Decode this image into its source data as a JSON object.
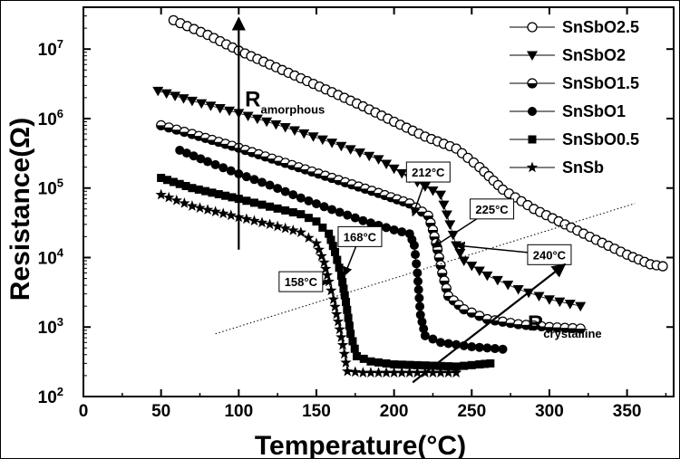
{
  "chart_data": {
    "type": "scatter",
    "xlabel": "Temperature(°C)",
    "ylabel": "Resistance(Ω)",
    "xlim": [
      0,
      380
    ],
    "ylim": [
      100,
      40000000
    ],
    "y_scale": "log",
    "x_ticks": [
      0,
      50,
      100,
      150,
      200,
      250,
      300,
      350
    ],
    "y_ticks": [
      {
        "value": 100,
        "base": "10",
        "exp": "2"
      },
      {
        "value": 1000,
        "base": "10",
        "exp": "3"
      },
      {
        "value": 10000,
        "base": "10",
        "exp": "4"
      },
      {
        "value": 100000,
        "base": "10",
        "exp": "5"
      },
      {
        "value": 1000000,
        "base": "10",
        "exp": "6"
      },
      {
        "value": 10000000,
        "base": "10",
        "exp": "7"
      }
    ],
    "legend_position": "top-right",
    "series": [
      {
        "name": "SnSbO2.5",
        "marker": "open-circle",
        "color": "#000000",
        "points": [
          [
            58,
            26000000.0
          ],
          [
            80,
            16000000.0
          ],
          [
            100,
            9500000.0
          ],
          [
            120,
            6000000.0
          ],
          [
            140,
            3800000.0
          ],
          [
            160,
            2400000.0
          ],
          [
            180,
            1500000.0
          ],
          [
            200,
            900000.0
          ],
          [
            220,
            550000.0
          ],
          [
            240,
            370000.0
          ],
          [
            255,
            200000.0
          ],
          [
            270,
            95000.0
          ],
          [
            290,
            50000.0
          ],
          [
            310,
            30000.0
          ],
          [
            330,
            18000.0
          ],
          [
            350,
            11000.0
          ],
          [
            365,
            8000.0
          ],
          [
            373,
            7500.0
          ]
        ]
      },
      {
        "name": "SnSbO2",
        "marker": "down-triangle",
        "color": "#000000",
        "points": [
          [
            48,
            2500000.0
          ],
          [
            70,
            1800000.0
          ],
          [
            100,
            1200000.0
          ],
          [
            130,
            750000.0
          ],
          [
            160,
            450000.0
          ],
          [
            190,
            260000.0
          ],
          [
            210,
            140000.0
          ],
          [
            230,
            80000.0
          ],
          [
            236,
            30000.0
          ],
          [
            240,
            15000.0
          ],
          [
            245,
            9000.0
          ],
          [
            260,
            5500.0
          ],
          [
            280,
            3500.0
          ],
          [
            300,
            2500.0
          ],
          [
            320,
            2000.0
          ]
        ]
      },
      {
        "name": "SnSbO1.5",
        "marker": "half-circle",
        "color": "#000000",
        "points": [
          [
            50,
            800000.0
          ],
          [
            70,
            600000.0
          ],
          [
            100,
            380000.0
          ],
          [
            130,
            230000.0
          ],
          [
            160,
            140000.0
          ],
          [
            190,
            85000.0
          ],
          [
            210,
            60000.0
          ],
          [
            222,
            40000.0
          ],
          [
            225,
            25000.0
          ],
          [
            228,
            13000.0
          ],
          [
            231,
            6000.0
          ],
          [
            235,
            2800.0
          ],
          [
            245,
            1800.0
          ],
          [
            260,
            1300.0
          ],
          [
            280,
            1100.0
          ],
          [
            300,
            1000.0
          ],
          [
            320,
            950.0
          ]
        ]
      },
      {
        "name": "SnSbO1",
        "marker": "filled-circle",
        "color": "#000000",
        "points": [
          [
            62,
            350000.0
          ],
          [
            80,
            240000.0
          ],
          [
            100,
            160000.0
          ],
          [
            120,
            110000.0
          ],
          [
            140,
            72000.0
          ],
          [
            160,
            49000.0
          ],
          [
            180,
            34000.0
          ],
          [
            200,
            25000.0
          ],
          [
            210,
            22000.0
          ],
          [
            213,
            15000.0
          ],
          [
            215,
            6000.0
          ],
          [
            217,
            1500.0
          ],
          [
            220,
            750.0
          ],
          [
            230,
            600.0
          ],
          [
            250,
            520.0
          ],
          [
            270,
            480.0
          ]
        ]
      },
      {
        "name": "SnSbO0.5",
        "marker": "filled-square",
        "color": "#000000",
        "points": [
          [
            50,
            140000.0
          ],
          [
            70,
            100000.0
          ],
          [
            100,
            70000.0
          ],
          [
            120,
            54000.0
          ],
          [
            140,
            42000.0
          ],
          [
            150,
            33000.0
          ],
          [
            158,
            22000.0
          ],
          [
            162,
            12000.0
          ],
          [
            166,
            5500.0
          ],
          [
            169,
            2300.0
          ],
          [
            172,
            800.0
          ],
          [
            176,
            380.0
          ],
          [
            185,
            320.0
          ],
          [
            200,
            290.0
          ],
          [
            220,
            280.0
          ],
          [
            240,
            270.0
          ],
          [
            255,
            290.0
          ],
          [
            262,
            300.0
          ]
        ]
      },
      {
        "name": "SnSb",
        "marker": "star",
        "color": "#000000",
        "points": [
          [
            50,
            80000.0
          ],
          [
            70,
            55000.0
          ],
          [
            100,
            38000.0
          ],
          [
            120,
            30000.0
          ],
          [
            140,
            23000.0
          ],
          [
            150,
            16000.0
          ],
          [
            155,
            8500.0
          ],
          [
            158,
            4500.0
          ],
          [
            161,
            2500.0
          ],
          [
            164,
            1200.0
          ],
          [
            167,
            550.0
          ],
          [
            170,
            230.0
          ],
          [
            180,
            220.0
          ],
          [
            200,
            220.0
          ],
          [
            220,
            220.0
          ],
          [
            240,
            220.0
          ]
        ]
      }
    ],
    "annotations": [
      {
        "id": "ann-158",
        "text": "158°C",
        "bx": 140,
        "by": 4500.0,
        "tx": 157,
        "ty": 4300.0
      },
      {
        "id": "ann-168",
        "text": "168°C",
        "bx": 178,
        "by": 20000.0,
        "tx": 168,
        "ty": 5500.0
      },
      {
        "id": "ann-212",
        "text": "212°C",
        "bx": 222,
        "by": 170000.0,
        "tx": 212,
        "ty": 40000.0
      },
      {
        "id": "ann-225",
        "text": "225°C",
        "bx": 263,
        "by": 50000.0,
        "tx": 225,
        "ty": 14000.0
      },
      {
        "id": "ann-240",
        "text": "240°C",
        "bx": 300,
        "by": 11000.0,
        "tx": 240,
        "ty": 15000.0
      }
    ],
    "r_amorphous": {
      "main": "R",
      "sub": "amorphous",
      "arrow_from": [
        100,
        13000.0
      ],
      "arrow_to": [
        100,
        28000000.0
      ],
      "label_at": [
        104,
        1500000.0
      ]
    },
    "r_crystalline": {
      "main": "R",
      "sub": "crystalline",
      "arrow_from": [
        212,
        160
      ],
      "arrow_to": [
        310,
        8000.0
      ],
      "label_at": [
        286,
        900
      ]
    },
    "dotted_line": {
      "from": [
        85,
        800
      ],
      "to": [
        355,
        60000.0
      ]
    }
  }
}
